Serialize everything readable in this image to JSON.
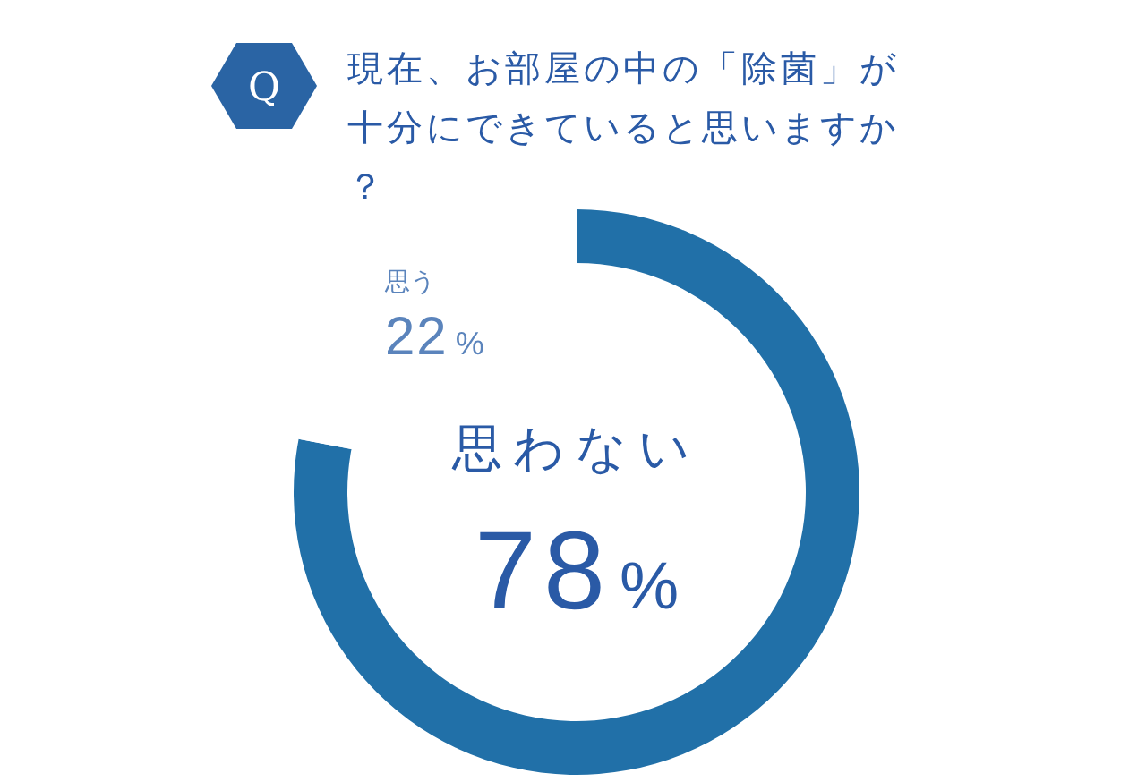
{
  "chart_data": {
    "type": "donut",
    "title": "現在、お部屋の中の「除菌」が十分にできていると思いますか？",
    "annotations": [
      "Q"
    ],
    "categories": [
      "思わない",
      "思う"
    ],
    "values": [
      78,
      22
    ],
    "colors": [
      "#2170a8",
      "#ffffff"
    ],
    "value_labels": [
      "78%",
      "22%"
    ]
  }
}
